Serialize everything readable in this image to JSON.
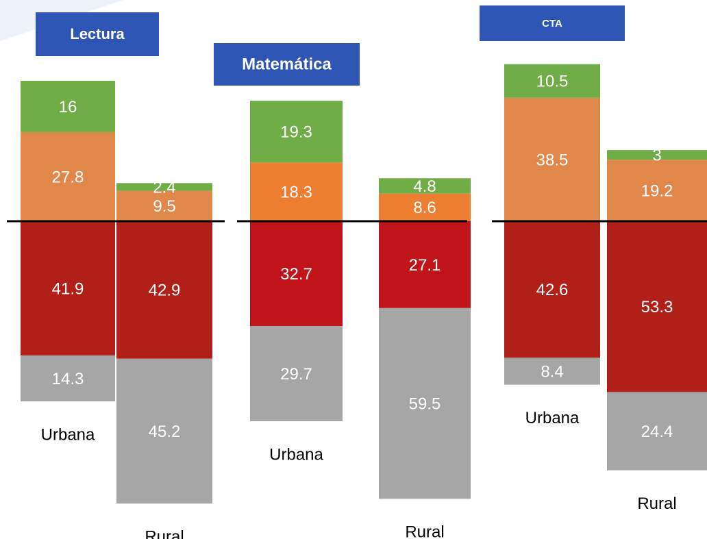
{
  "chart_data": [
    {
      "type": "bar",
      "title": "Lectura",
      "categories": [
        "Urbana",
        "Rural"
      ],
      "series": [
        {
          "color": "#e0884a",
          "stack": "up",
          "values": [
            27.8,
            9.5
          ]
        },
        {
          "color": "#70ad47",
          "stack": "up",
          "values": [
            16,
            2.4
          ]
        },
        {
          "color": "#b01f18",
          "stack": "down",
          "values": [
            41.9,
            42.9
          ]
        },
        {
          "color": "#a6a6a6",
          "stack": "down",
          "values": [
            14.3,
            45.2
          ]
        }
      ]
    },
    {
      "type": "bar",
      "title": "Matemática",
      "categories": [
        "Urbana",
        "Rural"
      ],
      "series": [
        {
          "color": "#ed7d31",
          "stack": "up",
          "values": [
            18.3,
            8.6
          ]
        },
        {
          "color": "#70ad47",
          "stack": "up",
          "values": [
            19.3,
            4.8
          ]
        },
        {
          "color": "#c0141a",
          "stack": "down",
          "values": [
            32.7,
            27.1
          ]
        },
        {
          "color": "#a6a6a6",
          "stack": "down",
          "values": [
            29.7,
            59.5
          ]
        }
      ]
    },
    {
      "type": "bar",
      "title": "CTA",
      "categories": [
        "Urbana",
        "Rural"
      ],
      "series": [
        {
          "color": "#e0884a",
          "stack": "up",
          "values": [
            38.5,
            19.2
          ]
        },
        {
          "color": "#70ad47",
          "stack": "up",
          "values": [
            10.5,
            3
          ]
        },
        {
          "color": "#b01f18",
          "stack": "down",
          "values": [
            42.6,
            53.3
          ]
        },
        {
          "color": "#a6a6a6",
          "stack": "down",
          "values": [
            8.4,
            24.4
          ]
        }
      ]
    }
  ]
}
